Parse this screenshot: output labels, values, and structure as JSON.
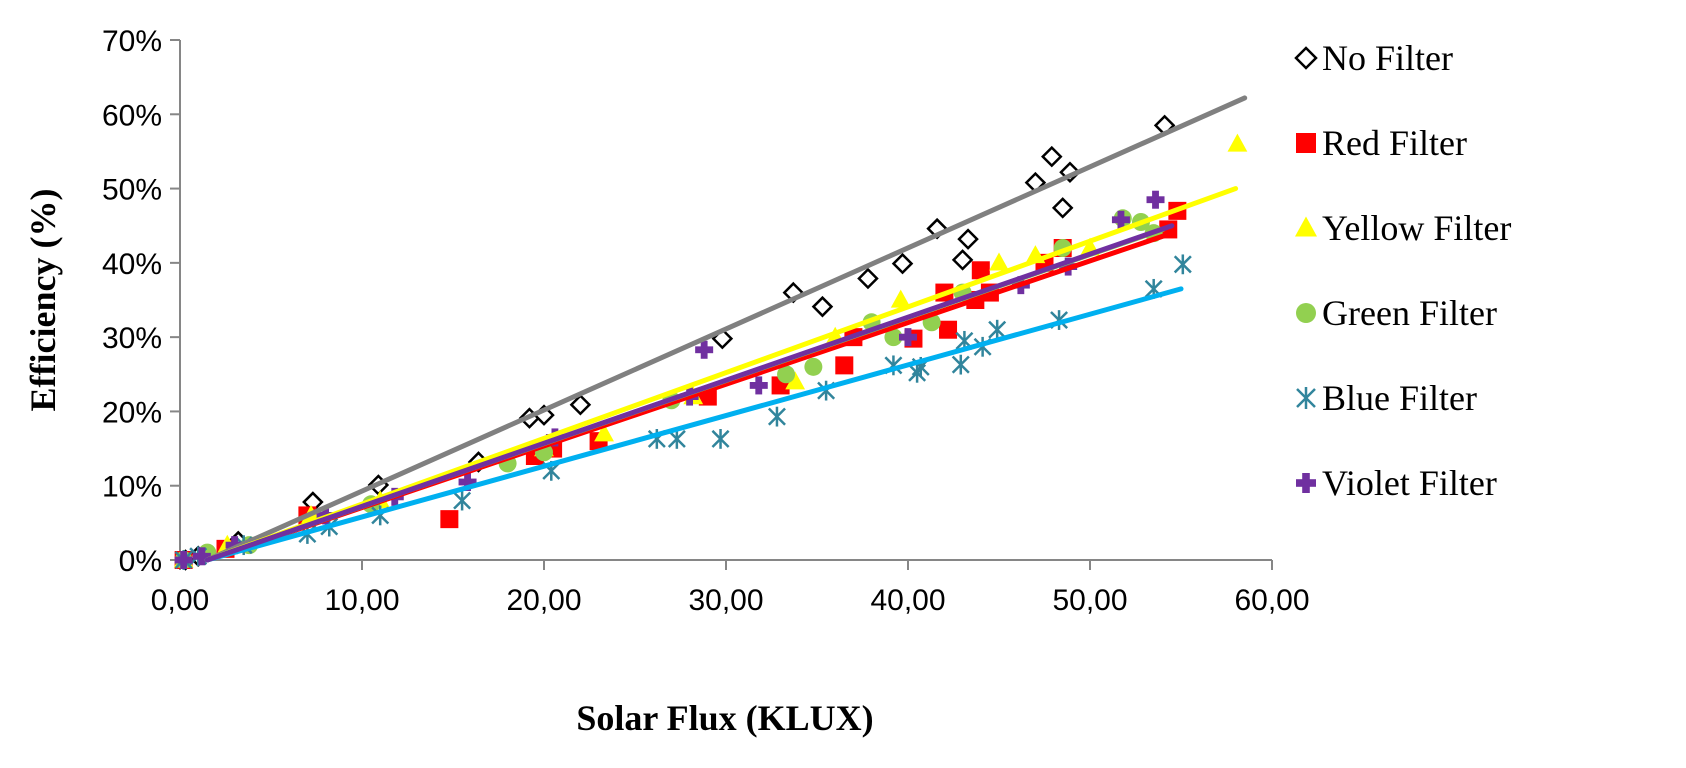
{
  "chart_data": {
    "type": "scatter",
    "title": "",
    "xlabel": "Solar Flux (KLUX)",
    "ylabel": "Efficiency (%)",
    "xlim": [
      0,
      60
    ],
    "ylim": [
      0,
      0.7
    ],
    "x_tick_labels": [
      "0,00",
      "10,00",
      "20,00",
      "30,00",
      "40,00",
      "50,00",
      "60,00"
    ],
    "y_tick_labels": [
      "0%",
      "10%",
      "20%",
      "30%",
      "40%",
      "50%",
      "60%",
      "70%"
    ],
    "grid": false,
    "legend_position": "right",
    "series": [
      {
        "name": "No Filter",
        "marker": "diamond-open",
        "marker_color": "#000000",
        "trendline_color": "#808080",
        "trendline": {
          "x": [
            1.5,
            58.5
          ],
          "y": [
            0.0,
            0.622
          ]
        },
        "points": [
          [
            0.3,
            0.0
          ],
          [
            1.0,
            0.005
          ],
          [
            3.2,
            0.025
          ],
          [
            7.3,
            0.078
          ],
          [
            10.9,
            0.101
          ],
          [
            16.4,
            0.132
          ],
          [
            19.2,
            0.191
          ],
          [
            20.0,
            0.195
          ],
          [
            22.0,
            0.209
          ],
          [
            29.8,
            0.298
          ],
          [
            33.7,
            0.36
          ],
          [
            35.3,
            0.341
          ],
          [
            37.8,
            0.379
          ],
          [
            39.7,
            0.399
          ],
          [
            41.6,
            0.446
          ],
          [
            43.0,
            0.404
          ],
          [
            43.3,
            0.432
          ],
          [
            47.0,
            0.508
          ],
          [
            47.9,
            0.543
          ],
          [
            48.5,
            0.474
          ],
          [
            48.9,
            0.522
          ],
          [
            54.1,
            0.585
          ]
        ]
      },
      {
        "name": "Red Filter",
        "marker": "square",
        "marker_color": "#ff0000",
        "trendline_color": "#ff0000",
        "trendline": {
          "x": [
            1.5,
            54.5
          ],
          "y": [
            0.0,
            0.44
          ]
        },
        "points": [
          [
            0.2,
            0.0
          ],
          [
            2.5,
            0.015
          ],
          [
            7.0,
            0.06
          ],
          [
            14.8,
            0.055
          ],
          [
            19.5,
            0.14
          ],
          [
            20.5,
            0.15
          ],
          [
            23.0,
            0.16
          ],
          [
            29.0,
            0.22
          ],
          [
            33.0,
            0.235
          ],
          [
            36.5,
            0.262
          ],
          [
            37.0,
            0.3
          ],
          [
            40.3,
            0.298
          ],
          [
            42.0,
            0.36
          ],
          [
            42.2,
            0.31
          ],
          [
            43.7,
            0.35
          ],
          [
            44.0,
            0.39
          ],
          [
            44.5,
            0.36
          ],
          [
            47.5,
            0.4
          ],
          [
            48.5,
            0.42
          ],
          [
            54.3,
            0.445
          ],
          [
            54.8,
            0.47
          ]
        ]
      },
      {
        "name": "Yellow Filter",
        "marker": "triangle",
        "marker_color": "#ffff00",
        "trendline_color": "#ffff00",
        "trendline": {
          "x": [
            1.5,
            58.0
          ],
          "y": [
            0.0,
            0.5
          ]
        },
        "points": [
          [
            0.2,
            0.0
          ],
          [
            2.6,
            0.02
          ],
          [
            7.2,
            0.06
          ],
          [
            11.0,
            0.08
          ],
          [
            20.0,
            0.15
          ],
          [
            23.3,
            0.17
          ],
          [
            28.2,
            0.22
          ],
          [
            33.8,
            0.24
          ],
          [
            36.0,
            0.3
          ],
          [
            39.6,
            0.35
          ],
          [
            45.0,
            0.4
          ],
          [
            47.0,
            0.41
          ],
          [
            50.0,
            0.42
          ],
          [
            58.1,
            0.56
          ]
        ]
      },
      {
        "name": "Green Filter",
        "marker": "circle",
        "marker_color": "#92d050",
        "trendline_color": "#92d050",
        "trendline": {
          "x": [
            1.5,
            54.0
          ],
          "y": [
            0.0,
            0.445
          ]
        },
        "points": [
          [
            0.2,
            0.0
          ],
          [
            1.5,
            0.01
          ],
          [
            3.8,
            0.02
          ],
          [
            10.5,
            0.075
          ],
          [
            18.0,
            0.13
          ],
          [
            20.0,
            0.145
          ],
          [
            27.0,
            0.215
          ],
          [
            33.3,
            0.25
          ],
          [
            34.8,
            0.26
          ],
          [
            38.0,
            0.32
          ],
          [
            39.2,
            0.3
          ],
          [
            41.3,
            0.32
          ],
          [
            43.0,
            0.36
          ],
          [
            48.5,
            0.42
          ],
          [
            51.8,
            0.46
          ],
          [
            52.8,
            0.455
          ],
          [
            53.5,
            0.44
          ]
        ]
      },
      {
        "name": "Blue Filter",
        "marker": "asterisk",
        "marker_color": "#31859c",
        "trendline_color": "#00b0f0",
        "trendline": {
          "x": [
            1.5,
            55.0
          ],
          "y": [
            0.0,
            0.365
          ]
        },
        "points": [
          [
            0.2,
            0.0
          ],
          [
            1.0,
            0.005
          ],
          [
            3.5,
            0.02
          ],
          [
            7.0,
            0.035
          ],
          [
            8.2,
            0.045
          ],
          [
            11.0,
            0.06
          ],
          [
            15.5,
            0.08
          ],
          [
            20.4,
            0.12
          ],
          [
            26.2,
            0.163
          ],
          [
            27.3,
            0.163
          ],
          [
            29.7,
            0.163
          ],
          [
            32.8,
            0.193
          ],
          [
            35.5,
            0.228
          ],
          [
            39.2,
            0.262
          ],
          [
            40.5,
            0.252
          ],
          [
            40.7,
            0.26
          ],
          [
            42.9,
            0.263
          ],
          [
            43.1,
            0.295
          ],
          [
            44.1,
            0.287
          ],
          [
            44.9,
            0.31
          ],
          [
            48.3,
            0.323
          ],
          [
            53.5,
            0.365
          ],
          [
            55.1,
            0.398
          ]
        ]
      },
      {
        "name": "Violet Filter",
        "marker": "cross",
        "marker_color": "#7030a0",
        "trendline_color": "#7030a0",
        "trendline": {
          "x": [
            1.5,
            54.5
          ],
          "y": [
            0.0,
            0.45
          ]
        },
        "points": [
          [
            0.2,
            0.0
          ],
          [
            1.2,
            0.005
          ],
          [
            3.0,
            0.02
          ],
          [
            8.0,
            0.06
          ],
          [
            11.8,
            0.085
          ],
          [
            15.8,
            0.105
          ],
          [
            20.6,
            0.165
          ],
          [
            28.0,
            0.22
          ],
          [
            28.8,
            0.283
          ],
          [
            31.8,
            0.235
          ],
          [
            40.0,
            0.3
          ],
          [
            46.2,
            0.37
          ],
          [
            48.8,
            0.395
          ],
          [
            51.7,
            0.458
          ],
          [
            53.6,
            0.485
          ]
        ]
      }
    ]
  }
}
